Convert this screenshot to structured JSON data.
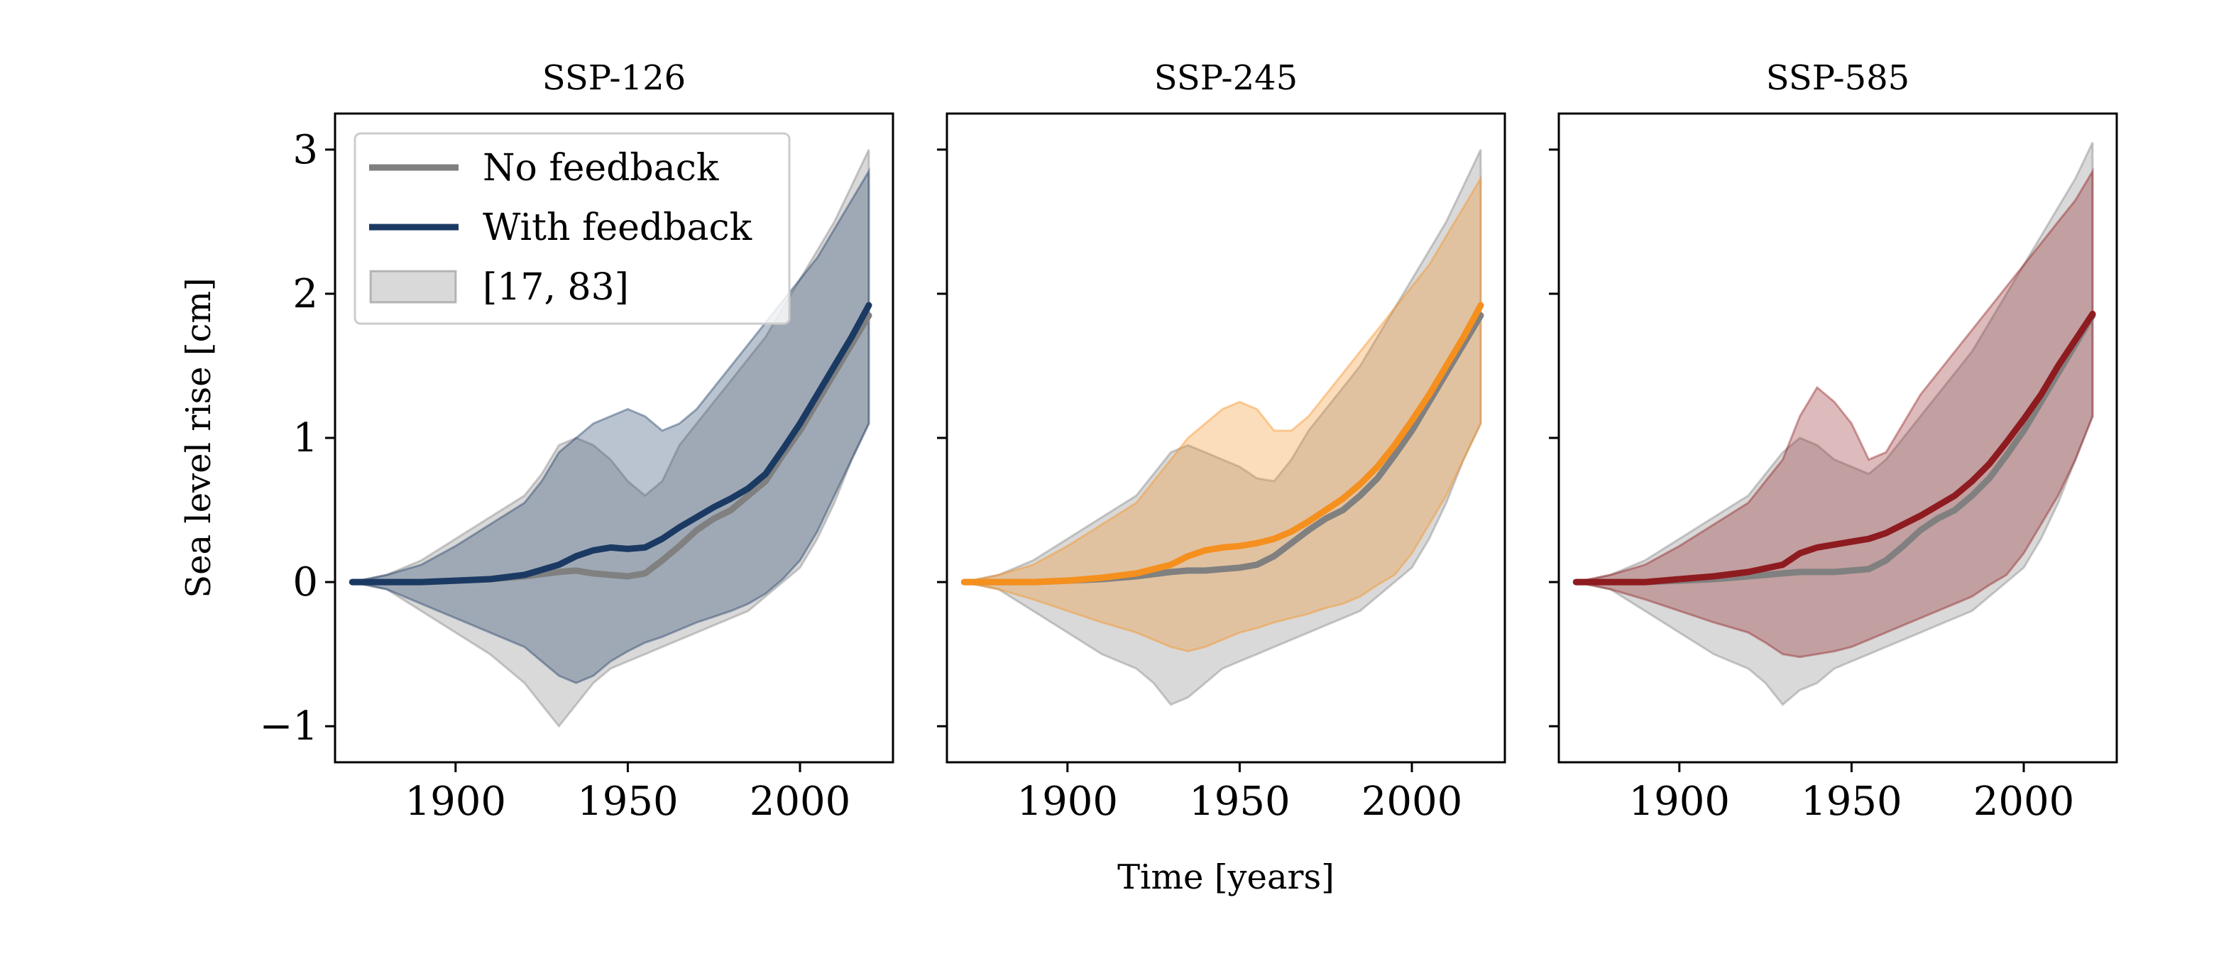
{
  "chart_data": {
    "type": "line",
    "xlabel": "Time [years]",
    "ylabel": "Sea level rise [cm]",
    "xlim": [
      1865,
      2027
    ],
    "ylim": [
      -1.25,
      3.25
    ],
    "xticks": [
      1900,
      1950,
      2000
    ],
    "yticks": [
      -1,
      0,
      1,
      2,
      3
    ],
    "ytick_labels": [
      "−1",
      "0",
      "1",
      "2",
      "3"
    ],
    "legend": {
      "placement": "upper-left",
      "entries": [
        "No feedback",
        "With feedback",
        "[17, 83]"
      ]
    },
    "grid": false,
    "panels": [
      {
        "title": "SSP-126",
        "color": "#1b3a63",
        "gray": "#808080",
        "series": [
          {
            "name": "No feedback",
            "x": [
              1870,
              1880,
              1890,
              1900,
              1910,
              1920,
              1930,
              1935,
              1940,
              1945,
              1950,
              1955,
              1960,
              1965,
              1970,
              1975,
              1980,
              1985,
              1990,
              1995,
              2000,
              2005,
              2010,
              2015,
              2020
            ],
            "y": [
              0,
              0,
              0,
              0.01,
              0.02,
              0.04,
              0.07,
              0.08,
              0.06,
              0.05,
              0.04,
              0.06,
              0.15,
              0.25,
              0.36,
              0.44,
              0.5,
              0.6,
              0.7,
              0.88,
              1.05,
              1.25,
              1.45,
              1.65,
              1.85
            ]
          },
          {
            "name": "With feedback",
            "x": [
              1870,
              1880,
              1890,
              1900,
              1910,
              1920,
              1930,
              1935,
              1940,
              1945,
              1950,
              1955,
              1960,
              1965,
              1970,
              1975,
              1980,
              1985,
              1990,
              1995,
              2000,
              2005,
              2010,
              2015,
              2020
            ],
            "y": [
              0,
              0,
              0,
              0.01,
              0.02,
              0.05,
              0.12,
              0.18,
              0.22,
              0.24,
              0.23,
              0.24,
              0.3,
              0.38,
              0.45,
              0.52,
              0.58,
              0.65,
              0.75,
              0.92,
              1.1,
              1.3,
              1.5,
              1.7,
              1.92
            ]
          }
        ],
        "band_no_feedback": {
          "x": [
            1870,
            1880,
            1890,
            1900,
            1910,
            1920,
            1925,
            1930,
            1935,
            1940,
            1945,
            1950,
            1955,
            1960,
            1965,
            1970,
            1975,
            1980,
            1985,
            1990,
            1995,
            2000,
            2005,
            2010,
            2015,
            2020
          ],
          "upper": [
            0,
            0.05,
            0.15,
            0.3,
            0.45,
            0.6,
            0.75,
            0.95,
            1.0,
            0.95,
            0.85,
            0.7,
            0.6,
            0.7,
            0.95,
            1.1,
            1.25,
            1.4,
            1.55,
            1.7,
            1.9,
            2.1,
            2.3,
            2.5,
            2.75,
            3.0
          ],
          "lower": [
            0,
            -0.05,
            -0.2,
            -0.35,
            -0.5,
            -0.7,
            -0.85,
            -1.0,
            -0.85,
            -0.7,
            -0.6,
            -0.55,
            -0.5,
            -0.45,
            -0.4,
            -0.35,
            -0.3,
            -0.25,
            -0.2,
            -0.1,
            0.0,
            0.1,
            0.3,
            0.55,
            0.85,
            1.1
          ]
        },
        "band_with_feedback": {
          "x": [
            1870,
            1880,
            1890,
            1900,
            1910,
            1920,
            1925,
            1930,
            1935,
            1940,
            1945,
            1950,
            1955,
            1960,
            1965,
            1970,
            1975,
            1980,
            1985,
            1990,
            1995,
            2000,
            2005,
            2010,
            2015,
            2020
          ],
          "upper": [
            0,
            0.05,
            0.12,
            0.25,
            0.4,
            0.55,
            0.7,
            0.9,
            1.0,
            1.1,
            1.15,
            1.2,
            1.15,
            1.05,
            1.1,
            1.2,
            1.35,
            1.5,
            1.65,
            1.8,
            1.95,
            2.1,
            2.25,
            2.45,
            2.65,
            2.85
          ],
          "lower": [
            0,
            -0.05,
            -0.15,
            -0.25,
            -0.35,
            -0.45,
            -0.55,
            -0.65,
            -0.7,
            -0.65,
            -0.55,
            -0.48,
            -0.42,
            -0.38,
            -0.33,
            -0.28,
            -0.24,
            -0.2,
            -0.15,
            -0.08,
            0.02,
            0.15,
            0.35,
            0.6,
            0.85,
            1.1
          ]
        }
      },
      {
        "title": "SSP-245",
        "color": "#f5901e",
        "gray": "#808080",
        "series": [
          {
            "name": "No feedback",
            "x": [
              1870,
              1880,
              1890,
              1900,
              1910,
              1920,
              1930,
              1935,
              1940,
              1945,
              1950,
              1955,
              1960,
              1965,
              1970,
              1975,
              1980,
              1985,
              1990,
              1995,
              2000,
              2005,
              2010,
              2015,
              2020
            ],
            "y": [
              0,
              0,
              0,
              0.01,
              0.02,
              0.04,
              0.07,
              0.08,
              0.08,
              0.09,
              0.1,
              0.12,
              0.18,
              0.27,
              0.36,
              0.44,
              0.5,
              0.6,
              0.72,
              0.88,
              1.05,
              1.25,
              1.45,
              1.65,
              1.85
            ]
          },
          {
            "name": "With feedback",
            "x": [
              1870,
              1880,
              1890,
              1900,
              1910,
              1920,
              1930,
              1935,
              1940,
              1945,
              1950,
              1955,
              1960,
              1965,
              1970,
              1975,
              1980,
              1985,
              1990,
              1995,
              2000,
              2005,
              2010,
              2015,
              2020
            ],
            "y": [
              0,
              0,
              0,
              0.01,
              0.03,
              0.06,
              0.12,
              0.18,
              0.22,
              0.24,
              0.25,
              0.27,
              0.3,
              0.35,
              0.42,
              0.5,
              0.58,
              0.68,
              0.8,
              0.95,
              1.12,
              1.3,
              1.5,
              1.7,
              1.92
            ]
          }
        ],
        "band_no_feedback": {
          "x": [
            1870,
            1880,
            1890,
            1900,
            1910,
            1920,
            1925,
            1930,
            1935,
            1940,
            1945,
            1950,
            1955,
            1960,
            1965,
            1970,
            1975,
            1980,
            1985,
            1990,
            1995,
            2000,
            2005,
            2010,
            2015,
            2020
          ],
          "upper": [
            0,
            0.05,
            0.15,
            0.3,
            0.45,
            0.6,
            0.75,
            0.9,
            0.95,
            0.9,
            0.85,
            0.8,
            0.72,
            0.7,
            0.85,
            1.05,
            1.2,
            1.35,
            1.5,
            1.7,
            1.9,
            2.1,
            2.3,
            2.5,
            2.75,
            3.0
          ],
          "lower": [
            0,
            -0.05,
            -0.2,
            -0.35,
            -0.5,
            -0.6,
            -0.7,
            -0.85,
            -0.8,
            -0.7,
            -0.6,
            -0.55,
            -0.5,
            -0.45,
            -0.4,
            -0.35,
            -0.3,
            -0.25,
            -0.2,
            -0.1,
            0.0,
            0.1,
            0.3,
            0.55,
            0.85,
            1.1
          ]
        },
        "band_with_feedback": {
          "x": [
            1870,
            1880,
            1890,
            1900,
            1910,
            1920,
            1925,
            1930,
            1935,
            1940,
            1945,
            1950,
            1955,
            1960,
            1965,
            1970,
            1975,
            1980,
            1985,
            1990,
            1995,
            2000,
            2005,
            2010,
            2015,
            2020
          ],
          "upper": [
            0,
            0.05,
            0.12,
            0.25,
            0.4,
            0.55,
            0.7,
            0.85,
            1.0,
            1.1,
            1.2,
            1.25,
            1.2,
            1.05,
            1.05,
            1.15,
            1.3,
            1.45,
            1.6,
            1.75,
            1.9,
            2.05,
            2.2,
            2.4,
            2.6,
            2.8
          ],
          "lower": [
            0,
            -0.05,
            -0.12,
            -0.2,
            -0.28,
            -0.35,
            -0.4,
            -0.45,
            -0.48,
            -0.45,
            -0.4,
            -0.35,
            -0.32,
            -0.28,
            -0.25,
            -0.22,
            -0.18,
            -0.15,
            -0.1,
            -0.02,
            0.05,
            0.2,
            0.4,
            0.6,
            0.85,
            1.1
          ]
        }
      },
      {
        "title": "SSP-585",
        "color": "#8e1b1f",
        "gray": "#808080",
        "series": [
          {
            "name": "No feedback",
            "x": [
              1870,
              1880,
              1890,
              1900,
              1910,
              1920,
              1930,
              1935,
              1940,
              1945,
              1950,
              1955,
              1960,
              1965,
              1970,
              1975,
              1980,
              1985,
              1990,
              1995,
              2000,
              2005,
              2010,
              2015,
              2020
            ],
            "y": [
              0,
              0,
              0,
              0.01,
              0.02,
              0.04,
              0.06,
              0.07,
              0.07,
              0.07,
              0.08,
              0.09,
              0.15,
              0.25,
              0.36,
              0.44,
              0.5,
              0.6,
              0.72,
              0.88,
              1.05,
              1.25,
              1.45,
              1.65,
              1.85
            ]
          },
          {
            "name": "With feedback",
            "x": [
              1870,
              1880,
              1890,
              1900,
              1910,
              1920,
              1930,
              1935,
              1940,
              1945,
              1950,
              1955,
              1960,
              1965,
              1970,
              1975,
              1980,
              1985,
              1990,
              1995,
              2000,
              2005,
              2010,
              2015,
              2020
            ],
            "y": [
              0,
              0,
              0,
              0.02,
              0.04,
              0.07,
              0.12,
              0.2,
              0.24,
              0.26,
              0.28,
              0.3,
              0.34,
              0.4,
              0.46,
              0.53,
              0.6,
              0.7,
              0.82,
              0.97,
              1.13,
              1.3,
              1.5,
              1.68,
              1.86
            ]
          }
        ],
        "band_no_feedback": {
          "x": [
            1870,
            1880,
            1890,
            1900,
            1910,
            1920,
            1925,
            1930,
            1935,
            1940,
            1945,
            1950,
            1955,
            1960,
            1965,
            1970,
            1975,
            1980,
            1985,
            1990,
            1995,
            2000,
            2005,
            2010,
            2015,
            2020
          ],
          "upper": [
            0,
            0.05,
            0.15,
            0.3,
            0.45,
            0.6,
            0.75,
            0.9,
            1.0,
            0.95,
            0.85,
            0.8,
            0.75,
            0.85,
            1.0,
            1.15,
            1.3,
            1.45,
            1.6,
            1.8,
            2.0,
            2.2,
            2.4,
            2.6,
            2.8,
            3.05
          ],
          "lower": [
            0,
            -0.05,
            -0.2,
            -0.35,
            -0.5,
            -0.6,
            -0.7,
            -0.85,
            -0.75,
            -0.7,
            -0.6,
            -0.55,
            -0.5,
            -0.45,
            -0.4,
            -0.35,
            -0.3,
            -0.25,
            -0.2,
            -0.1,
            0.0,
            0.1,
            0.3,
            0.55,
            0.85,
            1.15
          ]
        },
        "band_with_feedback": {
          "x": [
            1870,
            1880,
            1890,
            1900,
            1910,
            1920,
            1925,
            1930,
            1935,
            1940,
            1945,
            1950,
            1955,
            1960,
            1965,
            1970,
            1975,
            1980,
            1985,
            1990,
            1995,
            2000,
            2005,
            2010,
            2015,
            2020
          ],
          "upper": [
            0,
            0.05,
            0.12,
            0.25,
            0.4,
            0.55,
            0.7,
            0.85,
            1.15,
            1.35,
            1.25,
            1.1,
            0.85,
            0.9,
            1.1,
            1.3,
            1.45,
            1.6,
            1.75,
            1.9,
            2.05,
            2.2,
            2.35,
            2.5,
            2.65,
            2.85
          ],
          "lower": [
            0,
            -0.05,
            -0.12,
            -0.2,
            -0.28,
            -0.35,
            -0.42,
            -0.5,
            -0.52,
            -0.5,
            -0.48,
            -0.45,
            -0.4,
            -0.35,
            -0.3,
            -0.25,
            -0.2,
            -0.15,
            -0.1,
            -0.02,
            0.05,
            0.2,
            0.4,
            0.6,
            0.85,
            1.15
          ]
        }
      }
    ]
  }
}
